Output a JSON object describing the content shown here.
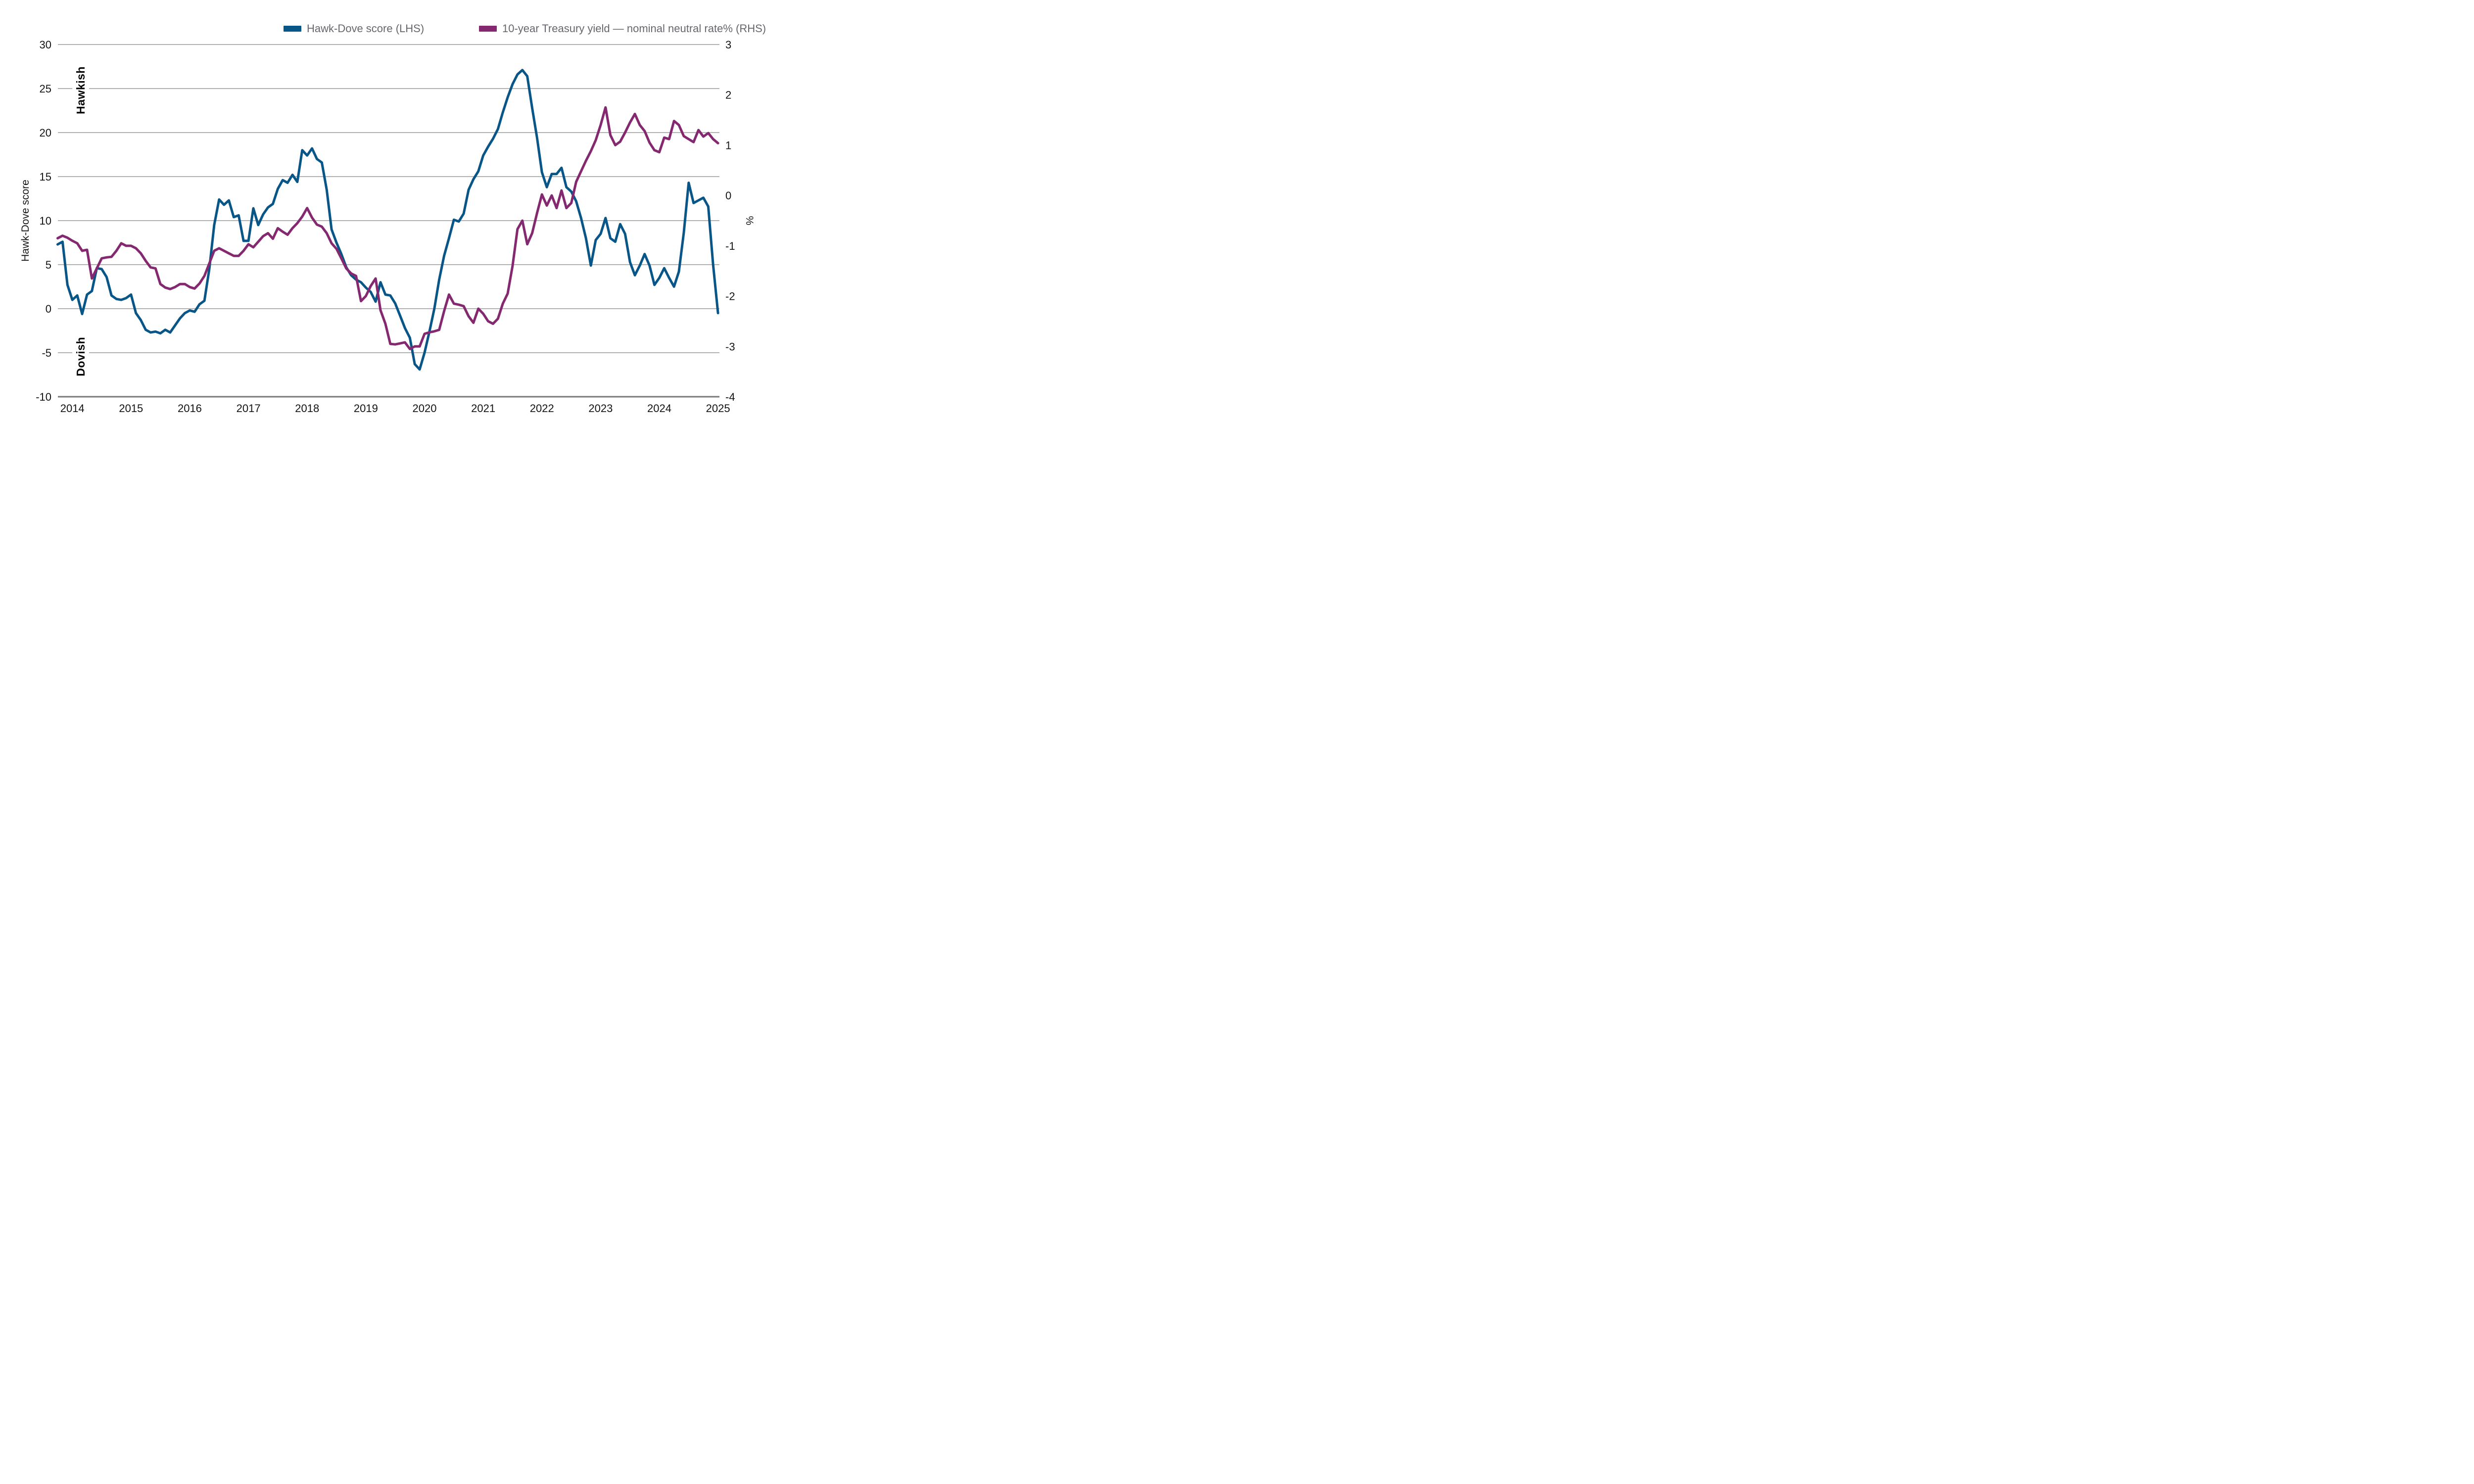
{
  "legend": {
    "position": "top",
    "items": [
      {
        "label": "Hawk-Dove score (LHS)",
        "color": "#085687"
      },
      {
        "label": "10-year Treasury yield — nominal neutral rate% (RHS)",
        "color": "#84286f"
      }
    ]
  },
  "annotations": [
    {
      "text": "Hawkish"
    },
    {
      "text": "Dovish"
    }
  ],
  "axes": {
    "left": {
      "title": "Hawk-Dove score",
      "ticks": [
        30,
        25,
        20,
        15,
        10,
        5,
        0,
        -5,
        -10
      ],
      "range": [
        -10,
        30
      ]
    },
    "right": {
      "title": "%",
      "ticks": [
        3,
        2,
        1,
        0,
        -1,
        -2,
        -3,
        -4
      ],
      "range": [
        -4,
        3
      ]
    },
    "x": {
      "tick_labels": [
        "2014",
        "2015",
        "2016",
        "2017",
        "2018",
        "2019",
        "2020",
        "2021",
        "2022",
        "2023",
        "2024",
        "2025"
      ]
    }
  },
  "colors": {
    "blue_line": "#085687",
    "pink_line": "#84286f",
    "gridline": "#9a9a9a",
    "axis_line": "#7a7a7a",
    "tick_text": "#141414",
    "legend_text": "#67666d"
  },
  "chart_data": {
    "type": "line",
    "title": "",
    "xlabel": "",
    "ylabel_left": "Hawk-Dove score",
    "ylabel_right": "%",
    "ylim_left": [
      -10,
      30
    ],
    "ylim_right": [
      -4,
      3
    ],
    "grid": "horizontal",
    "legend_position": "top",
    "frequency": "monthly",
    "x": [
      "2013-10",
      "2013-11",
      "2013-12",
      "2014-01",
      "2014-02",
      "2014-03",
      "2014-04",
      "2014-05",
      "2014-06",
      "2014-07",
      "2014-08",
      "2014-09",
      "2014-10",
      "2014-11",
      "2014-12",
      "2015-01",
      "2015-02",
      "2015-03",
      "2015-04",
      "2015-05",
      "2015-06",
      "2015-07",
      "2015-08",
      "2015-09",
      "2015-10",
      "2015-11",
      "2015-12",
      "2016-01",
      "2016-02",
      "2016-03",
      "2016-04",
      "2016-05",
      "2016-06",
      "2016-07",
      "2016-08",
      "2016-09",
      "2016-10",
      "2016-11",
      "2016-12",
      "2017-01",
      "2017-02",
      "2017-03",
      "2017-04",
      "2017-05",
      "2017-06",
      "2017-07",
      "2017-08",
      "2017-09",
      "2017-10",
      "2017-11",
      "2017-12",
      "2018-01",
      "2018-02",
      "2018-03",
      "2018-04",
      "2018-05",
      "2018-06",
      "2018-07",
      "2018-08",
      "2018-09",
      "2018-10",
      "2018-11",
      "2018-12",
      "2019-01",
      "2019-02",
      "2019-03",
      "2019-04",
      "2019-05",
      "2019-06",
      "2019-07",
      "2019-08",
      "2019-09",
      "2019-10",
      "2019-11",
      "2019-12",
      "2020-01",
      "2020-02",
      "2020-03",
      "2020-04",
      "2020-05",
      "2020-06",
      "2020-07",
      "2020-08",
      "2020-09",
      "2020-10",
      "2020-11",
      "2020-12",
      "2021-01",
      "2021-02",
      "2021-03",
      "2021-04",
      "2021-05",
      "2021-06",
      "2021-07",
      "2021-08",
      "2021-09",
      "2021-10",
      "2021-11",
      "2021-12",
      "2022-01",
      "2022-02",
      "2022-03",
      "2022-04",
      "2022-05",
      "2022-06",
      "2022-07",
      "2022-08",
      "2022-09",
      "2022-10",
      "2022-11",
      "2022-12",
      "2023-01",
      "2023-02",
      "2023-03",
      "2023-04",
      "2023-05",
      "2023-06",
      "2023-07",
      "2023-08",
      "2023-09",
      "2023-10",
      "2023-11",
      "2023-12",
      "2024-01",
      "2024-02",
      "2024-03",
      "2024-04",
      "2024-05",
      "2024-06",
      "2024-07",
      "2024-08",
      "2024-09",
      "2024-10",
      "2024-11",
      "2024-12",
      "2025-01"
    ],
    "series": [
      {
        "name": "Hawk-Dove score (LHS)",
        "axis": "left",
        "color": "#085687",
        "values": [
          7.3,
          7.6,
          2.7,
          1.0,
          1.5,
          -0.6,
          1.6,
          2.0,
          4.6,
          4.5,
          3.6,
          1.5,
          1.1,
          1.0,
          1.2,
          1.6,
          -0.5,
          -1.3,
          -2.4,
          -2.7,
          -2.6,
          -2.8,
          -2.4,
          -2.7,
          -1.9,
          -1.1,
          -0.5,
          -0.2,
          -0.35,
          0.5,
          0.9,
          4.5,
          9.5,
          12.4,
          11.8,
          12.3,
          10.4,
          10.6,
          7.7,
          7.7,
          11.4,
          9.5,
          10.7,
          11.5,
          11.9,
          13.6,
          14.6,
          14.3,
          15.2,
          14.4,
          18.0,
          17.4,
          18.2,
          17.0,
          16.6,
          13.5,
          9.0,
          7.5,
          6.2,
          4.7,
          3.8,
          3.3,
          3.0,
          2.4,
          1.9,
          0.8,
          3.0,
          1.6,
          1.5,
          0.6,
          -0.8,
          -2.2,
          -3.3,
          -6.3,
          -6.9,
          -5.0,
          -2.6,
          0.0,
          3.3,
          6.0,
          8.0,
          10.1,
          9.9,
          10.8,
          13.5,
          14.7,
          15.6,
          17.4,
          18.4,
          19.3,
          20.4,
          22.3,
          24.0,
          25.5,
          26.6,
          27.1,
          26.4,
          22.8,
          19.4,
          15.5,
          13.8,
          15.3,
          15.3,
          16.0,
          13.8,
          13.3,
          12.2,
          10.3,
          8.0,
          4.9,
          7.8,
          8.5,
          10.3,
          8.0,
          7.6,
          9.6,
          8.5,
          5.3,
          3.8,
          4.9,
          6.2,
          4.9,
          2.7,
          3.5,
          4.6,
          3.5,
          2.5,
          4.2,
          8.6,
          14.3,
          12.0,
          12.3,
          12.6,
          11.6,
          5.0,
          -0.5
        ]
      },
      {
        "name": "10-year Treasury yield — nominal neutral rate% (RHS)",
        "axis": "right",
        "color": "#84286f",
        "values": [
          -0.85,
          -0.8,
          -0.84,
          -0.9,
          -0.95,
          -1.1,
          -1.08,
          -1.65,
          -1.45,
          -1.25,
          -1.23,
          -1.22,
          -1.1,
          -0.95,
          -1.0,
          -1.0,
          -1.05,
          -1.15,
          -1.3,
          -1.43,
          -1.45,
          -1.76,
          -1.83,
          -1.86,
          -1.82,
          -1.76,
          -1.76,
          -1.82,
          -1.85,
          -1.75,
          -1.6,
          -1.35,
          -1.1,
          -1.05,
          -1.1,
          -1.15,
          -1.2,
          -1.2,
          -1.1,
          -0.97,
          -1.03,
          -0.92,
          -0.81,
          -0.75,
          -0.86,
          -0.65,
          -0.72,
          -0.78,
          -0.65,
          -0.55,
          -0.42,
          -0.25,
          -0.44,
          -0.58,
          -0.62,
          -0.75,
          -0.95,
          -1.06,
          -1.25,
          -1.45,
          -1.55,
          -1.6,
          -2.1,
          -2.0,
          -1.8,
          -1.65,
          -2.28,
          -2.55,
          -2.95,
          -2.96,
          -2.94,
          -2.92,
          -3.05,
          -3.0,
          -3.0,
          -2.75,
          -2.72,
          -2.7,
          -2.67,
          -2.3,
          -1.97,
          -2.15,
          -2.17,
          -2.2,
          -2.4,
          -2.53,
          -2.25,
          -2.35,
          -2.5,
          -2.55,
          -2.45,
          -2.15,
          -1.95,
          -1.4,
          -0.67,
          -0.5,
          -0.97,
          -0.75,
          -0.35,
          0.02,
          -0.2,
          0.0,
          -0.25,
          0.1,
          -0.25,
          -0.15,
          0.27,
          0.48,
          0.69,
          0.88,
          1.1,
          1.4,
          1.75,
          1.2,
          1.0,
          1.07,
          1.25,
          1.45,
          1.62,
          1.4,
          1.28,
          1.05,
          0.9,
          0.86,
          1.15,
          1.12,
          1.48,
          1.4,
          1.18,
          1.12,
          1.06,
          1.3,
          1.17,
          1.24,
          1.12,
          1.04
        ]
      }
    ]
  }
}
